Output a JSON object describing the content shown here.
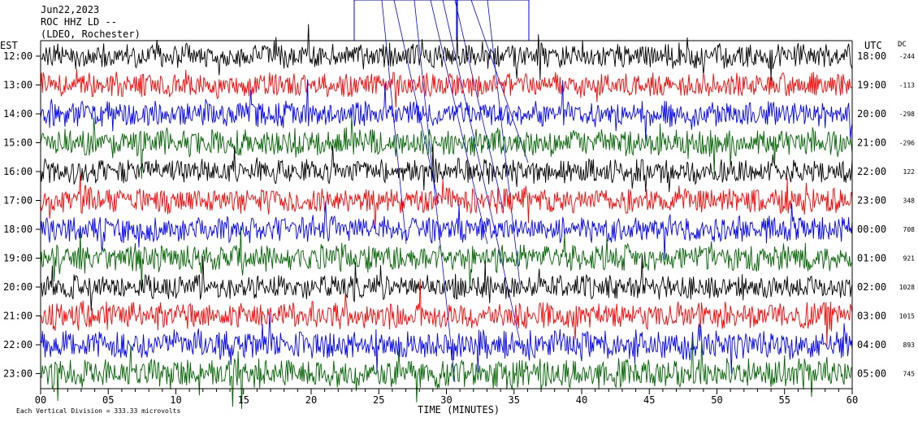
{
  "header": {
    "date": "Jun22,2023",
    "station": "ROC HHZ LD --",
    "network": "(LDEO, Rochester)"
  },
  "labels": {
    "left_tz": "EST",
    "right_tz": "UTC",
    "dc": "DC",
    "xlabel": "TIME (MINUTES)",
    "scale_note": "Each Vertical Division =  333.33 microvolts"
  },
  "colors": {
    "trace_cycle": [
      "#000000",
      "#ff0000",
      "#0000ff",
      "#006400"
    ],
    "grid": "#000000",
    "event_marker": "#0000ff"
  },
  "chart_data": {
    "type": "line",
    "title": "ROC HHZ LD --",
    "xlabel": "TIME (MINUTES)",
    "xlim": [
      0,
      60
    ],
    "x_ticks": [
      "00",
      "05",
      "10",
      "15",
      "20",
      "25",
      "30",
      "35",
      "40",
      "45",
      "50",
      "55",
      "60"
    ],
    "rows": [
      {
        "est": "12:00",
        "utc": "18:00",
        "dc": "-244",
        "color": "#000000",
        "amp": 0.8
      },
      {
        "est": "13:00",
        "utc": "19:00",
        "dc": "-113",
        "color": "#ff0000",
        "amp": 0.8
      },
      {
        "est": "14:00",
        "utc": "20:00",
        "dc": "-298",
        "color": "#0000ff",
        "amp": 0.85
      },
      {
        "est": "15:00",
        "utc": "21:00",
        "dc": "-296",
        "color": "#006400",
        "amp": 0.9
      },
      {
        "est": "16:00",
        "utc": "22:00",
        "dc": "122",
        "color": "#000000",
        "amp": 0.8
      },
      {
        "est": "17:00",
        "utc": "23:00",
        "dc": "348",
        "color": "#ff0000",
        "amp": 0.85
      },
      {
        "est": "18:00",
        "utc": "00:00",
        "dc": "708",
        "color": "#0000ff",
        "amp": 0.85
      },
      {
        "est": "19:00",
        "utc": "01:00",
        "dc": "921",
        "color": "#006400",
        "amp": 0.9
      },
      {
        "est": "20:00",
        "utc": "02:00",
        "dc": "1028",
        "color": "#000000",
        "amp": 0.8
      },
      {
        "est": "21:00",
        "utc": "03:00",
        "dc": "1015",
        "color": "#ff0000",
        "amp": 0.9
      },
      {
        "est": "22:00",
        "utc": "04:00",
        "dc": "893",
        "color": "#0000ff",
        "amp": 0.95
      },
      {
        "est": "23:00",
        "utc": "05:00",
        "dc": "745",
        "color": "#006400",
        "amp": 1.0
      }
    ]
  }
}
